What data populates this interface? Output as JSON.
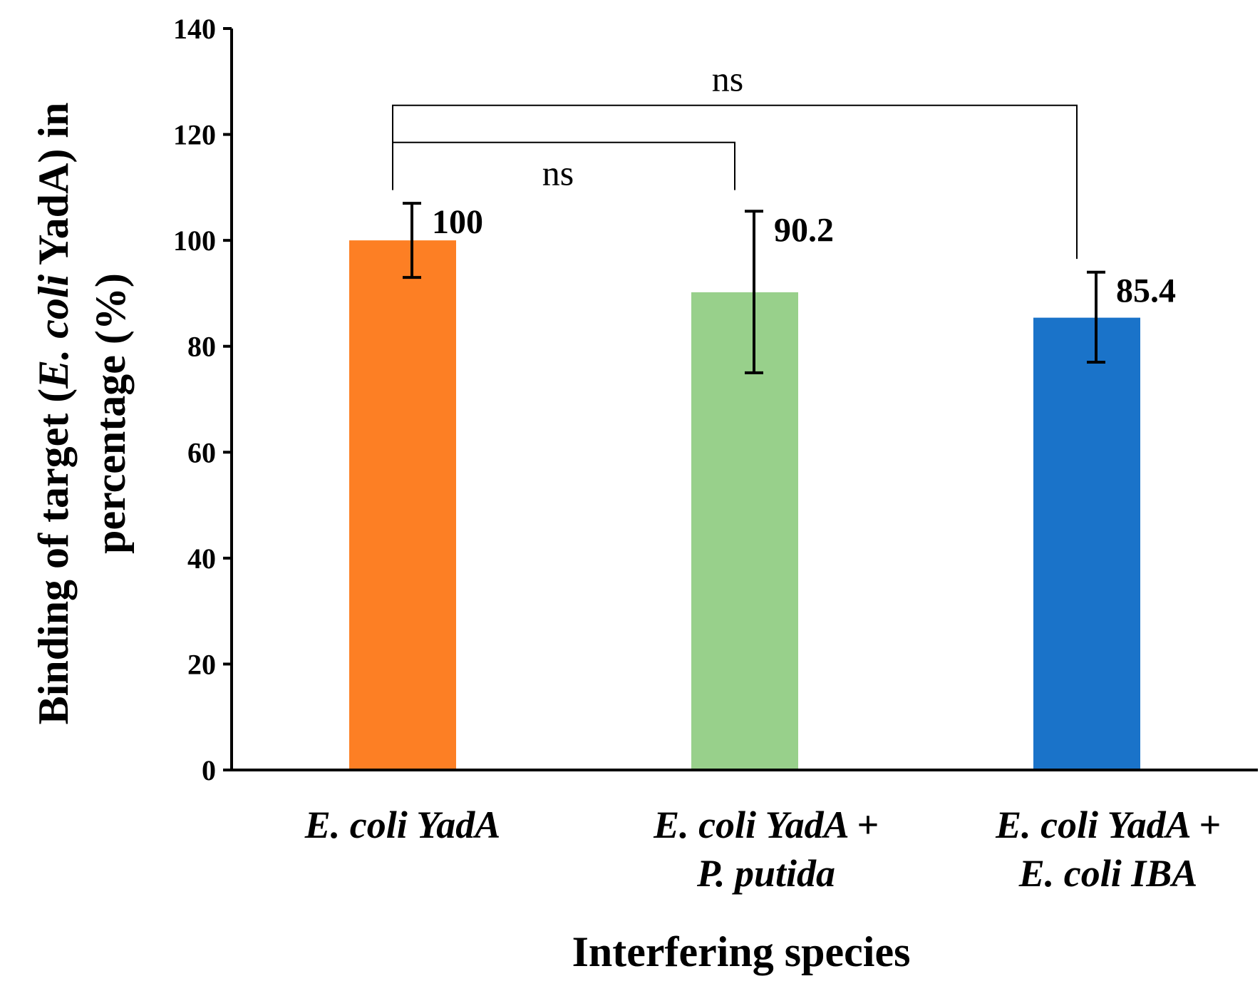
{
  "chart_data": {
    "type": "bar",
    "categories": [
      [
        "E. coli YadA"
      ],
      [
        "E. coli YadA +",
        "P. putida"
      ],
      [
        "E. coli YadA +",
        "E. coli IBA"
      ]
    ],
    "values": [
      100,
      90.2,
      85.4
    ],
    "value_labels": [
      "100",
      "90.2",
      "85.4"
    ],
    "error_low": [
      93,
      75,
      77
    ],
    "error_high": [
      107,
      105.5,
      94
    ],
    "colors": [
      "#fd7f24",
      "#98d08b",
      "#1a73c9"
    ],
    "ylim": [
      0,
      140
    ],
    "yticks": [
      0,
      20,
      40,
      60,
      80,
      100,
      120,
      140
    ],
    "xlabel": "Interfering species",
    "ylabel_line1_parts": [
      {
        "text": "Binding of target (",
        "italic": false
      },
      {
        "text": "E. coli",
        "italic": true
      },
      {
        "text": " YadA) in",
        "italic": false
      }
    ],
    "ylabel_line2": "percentage (%)",
    "significance": [
      {
        "from": 0,
        "to": 1,
        "label": "ns",
        "level": 118.5
      },
      {
        "from": 0,
        "to": 2,
        "label": "ns",
        "level": 125.5
      }
    ]
  }
}
